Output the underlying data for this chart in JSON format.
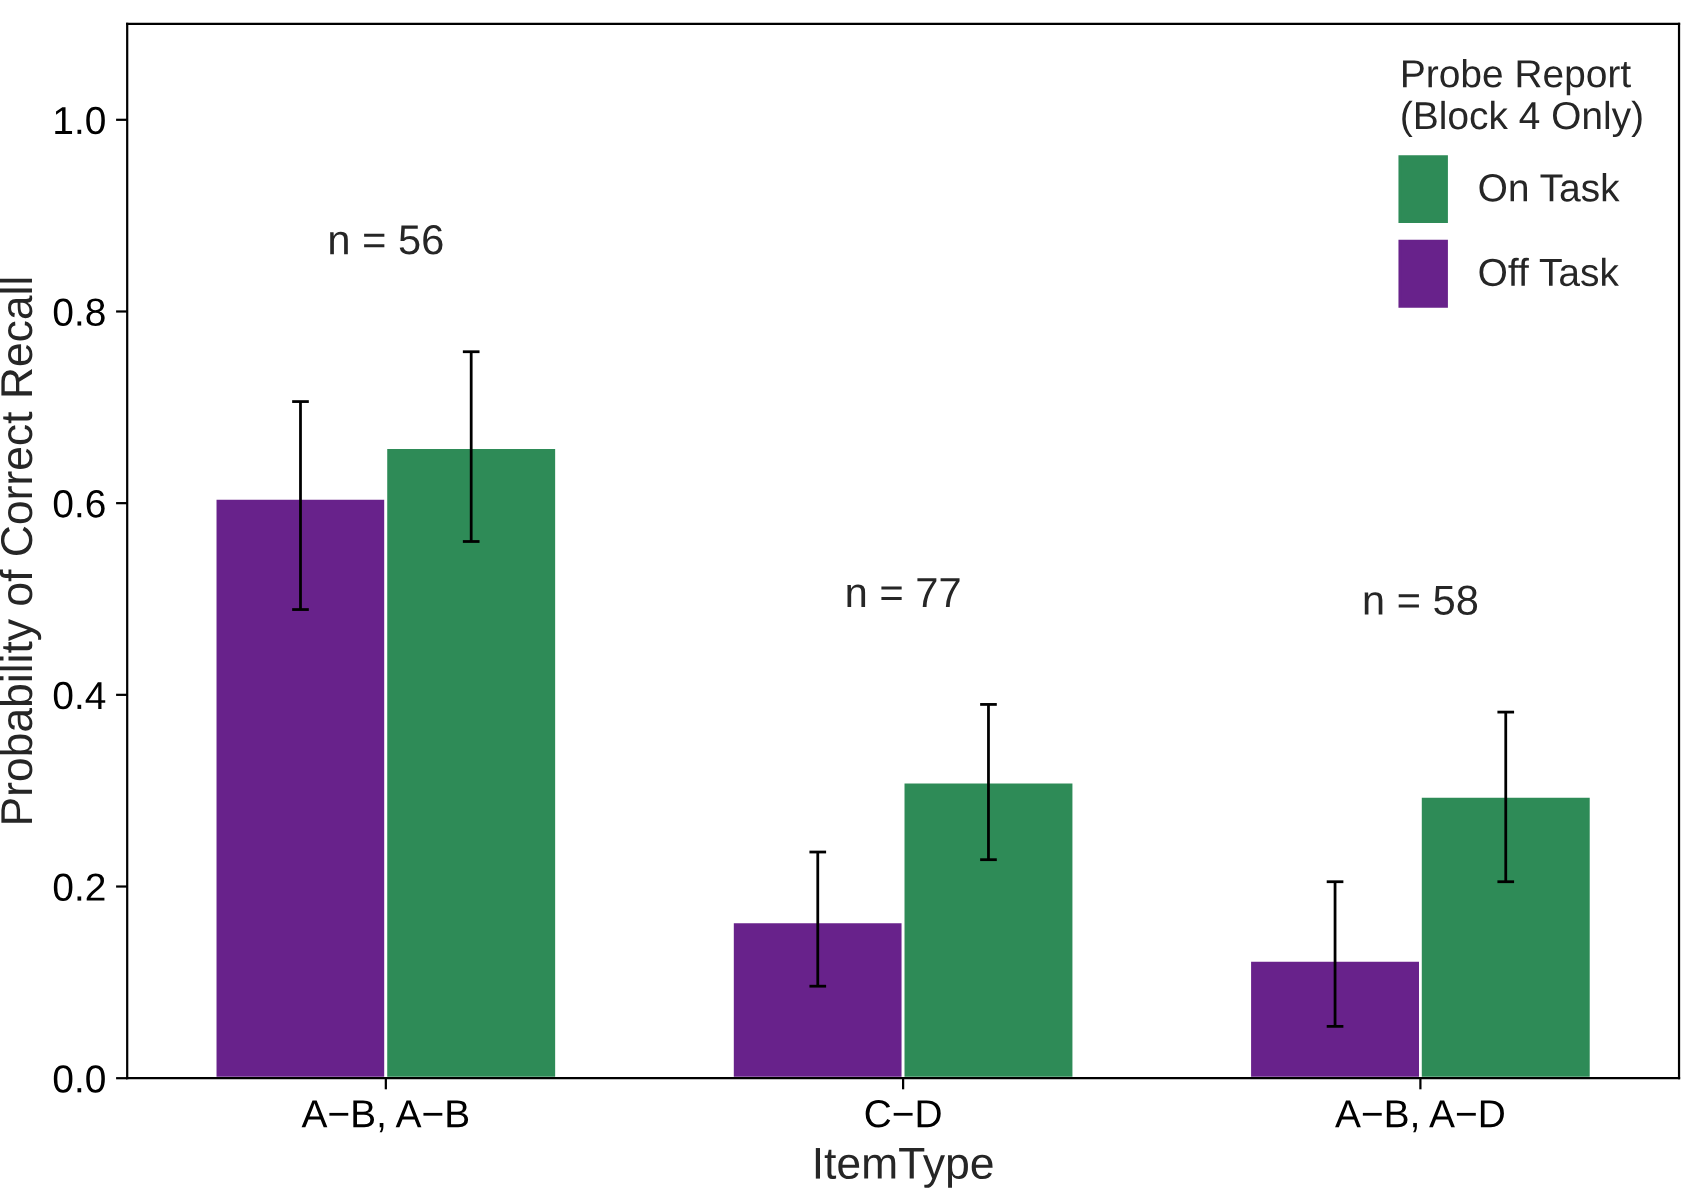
{
  "chart_data": {
    "type": "bar",
    "xlabel": "ItemType",
    "ylabel": "Probability of Correct Recall",
    "legend_title": "Probe Report\n(Block 4 Only)",
    "categories": [
      "A−B, A−B",
      "C−D",
      "A−B, A−D"
    ],
    "series": [
      {
        "name": "Off Task",
        "color": "#68228b",
        "values": [
          0.605,
          0.163,
          0.123
        ],
        "errors": [
          [
            0.489,
            0.706
          ],
          [
            0.096,
            0.236
          ],
          [
            0.054,
            0.205
          ]
        ]
      },
      {
        "name": "On Task",
        "color": "#2e8b57",
        "values": [
          0.658,
          0.309,
          0.294
        ],
        "errors": [
          [
            0.56,
            0.758
          ],
          [
            0.228,
            0.39
          ],
          [
            0.205,
            0.382
          ]
        ]
      }
    ],
    "annotations": [
      "n = 56",
      "n = 77",
      "n = 58"
    ],
    "ylim": [
      0,
      1.1
    ],
    "yticks": [
      {
        "value": 0,
        "label": "0.0"
      },
      {
        "value": 0.2,
        "label": "0.2"
      },
      {
        "value": 0.4,
        "label": "0.4"
      },
      {
        "value": 0.6,
        "label": "0.6"
      },
      {
        "value": 0.8,
        "label": "0.8"
      },
      {
        "value": 1.0,
        "label": "1.0"
      }
    ],
    "grid": false,
    "legend": "top right"
  }
}
